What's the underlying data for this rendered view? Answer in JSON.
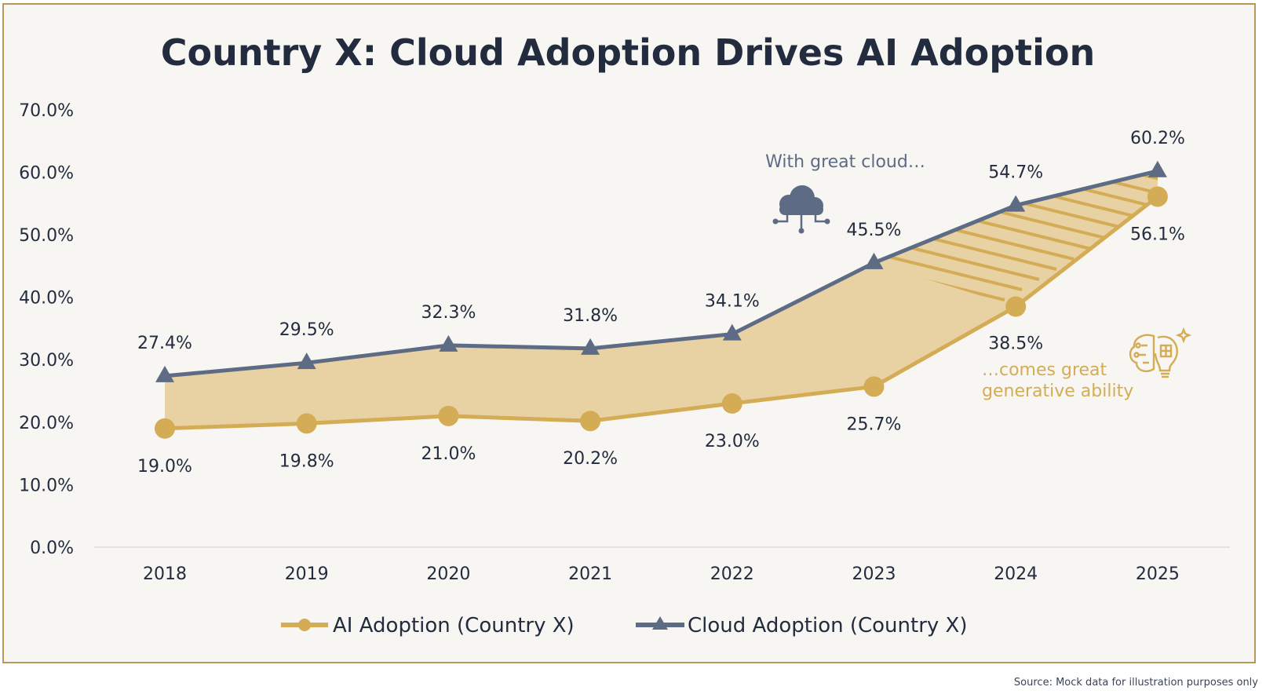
{
  "chart_data": {
    "type": "line",
    "title": "Country X: Cloud Adoption Drives AI Adoption",
    "categories": [
      "2018",
      "2019",
      "2020",
      "2021",
      "2022",
      "2023",
      "2024",
      "2025"
    ],
    "series": [
      {
        "name": "AI Adoption (Country X)",
        "values": [
          19.0,
          19.8,
          21.0,
          20.2,
          23.0,
          25.7,
          38.5,
          56.1
        ],
        "labels": [
          "19.0%",
          "19.8%",
          "21.0%",
          "20.2%",
          "23.0%",
          "25.7%",
          "38.5%",
          "56.1%"
        ],
        "color": "#d4ac55",
        "marker": "circle"
      },
      {
        "name": "Cloud Adoption (Country X)",
        "values": [
          27.4,
          29.5,
          32.3,
          31.8,
          34.1,
          45.5,
          54.7,
          60.2
        ],
        "labels": [
          "27.4%",
          "29.5%",
          "32.3%",
          "31.8%",
          "34.1%",
          "45.5%",
          "54.7%",
          "60.2%"
        ],
        "color": "#5d6b85",
        "marker": "triangle"
      }
    ],
    "ylim": [
      0,
      70
    ],
    "yticks": [
      "0.0%",
      "10.0%",
      "20.0%",
      "30.0%",
      "40.0%",
      "50.0%",
      "60.0%",
      "70.0%"
    ],
    "fill_between_color": "#e8d2a4",
    "legend_position": "bottom-center",
    "annotations": {
      "cloud_text": "With great cloud…",
      "ai_text_line1": "…comes great",
      "ai_text_line2": "generative ability"
    },
    "grid": false
  },
  "source_note": "Source: Mock data for illustration purposes only",
  "icons": {
    "cloud": "cloud-network-icon",
    "brain": "brain-bulb-icon"
  }
}
